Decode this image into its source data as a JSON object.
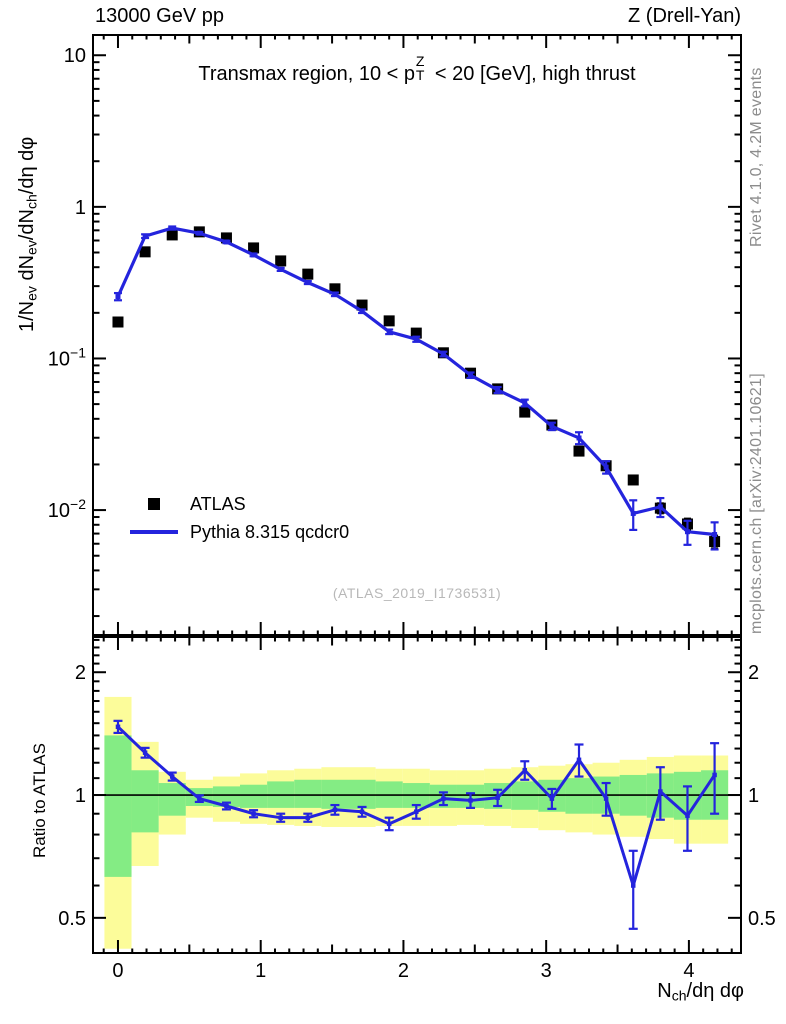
{
  "header": {
    "left_label": "13000 GeV pp",
    "right_label": "Z (Drell-Yan)"
  },
  "watermark": "(ATLAS_2019_I1736531)",
  "side_notes": {
    "top_right": "Rivet 4.1.0,  4.2M events",
    "bottom_right": "mcplots.cern.ch [arXiv:2401.10621]"
  },
  "legend": {
    "items": [
      {
        "label": "ATLAS",
        "marker": "black-square-marker"
      },
      {
        "label": "Pythia 8.315 qcdcr0",
        "marker": "blue-line-marker"
      }
    ]
  },
  "colors": {
    "mc_line": "#2424dd",
    "data_marker": "#000000",
    "band_outer": "#fcfc9a",
    "band_inner": "#84ec84",
    "frame": "#000000",
    "note_gray": "#8c8c8c",
    "watermark_gray": "#b8b8b8"
  },
  "label_parts": {
    "panel_title": [
      [
        "t",
        "Transmax region, 10 < p"
      ],
      [
        "stack",
        "Z",
        "T"
      ],
      [
        "t",
        " < 20 [GeV], high thrust"
      ]
    ],
    "y_main": [
      [
        "t",
        "1/N"
      ],
      [
        "s",
        "ev"
      ],
      [
        "t",
        " dN"
      ],
      [
        "s",
        "ev"
      ],
      [
        "t",
        "/dN"
      ],
      [
        "s",
        "ch"
      ],
      [
        "t",
        "/dη dφ"
      ]
    ],
    "x_axis": [
      [
        "t",
        "N"
      ],
      [
        "s",
        "ch"
      ],
      [
        "t",
        "/dη dφ"
      ]
    ],
    "ratio_y": [
      [
        "t",
        "Ratio to ATLAS"
      ]
    ]
  },
  "chart_data": {
    "type": "line",
    "title": "Transmax region, 10 < pT^Z < 20 [GeV], high thrust",
    "xlabel": "N_ch/dη dφ",
    "ylabel_main": "1/N_ev dN_ev/dN_ch/dη dφ",
    "ylabel_ratio": "Ratio to ATLAS",
    "legend_position": "inside-left-bottom",
    "grid": false,
    "xlim": [
      -0.175,
      4.365
    ],
    "ylim_main": [
      0.0015,
      13.6
    ],
    "ylim_ratio": [
      0.41,
      2.44
    ],
    "x_ticks": [
      {
        "v": 0,
        "label": "0"
      },
      {
        "v": 1,
        "label": "1"
      },
      {
        "v": 2,
        "label": "2"
      },
      {
        "v": 3,
        "label": "3"
      },
      {
        "v": 4,
        "label": "4"
      }
    ],
    "y_ticks_main": [
      {
        "v": 10,
        "label": "10",
        "exp": ""
      },
      {
        "v": 1,
        "label": "1",
        "exp": ""
      },
      {
        "v": 0.1,
        "label": "10",
        "exp": "−1"
      },
      {
        "v": 0.01,
        "label": "10",
        "exp": "−2"
      }
    ],
    "y_ticks_ratio": [
      {
        "v": 2,
        "label": "2"
      },
      {
        "v": 1,
        "label": "1"
      },
      {
        "v": 0.5,
        "label": "0.5"
      }
    ],
    "bin_half_width": 0.095,
    "x": [
      0,
      0.19,
      0.38,
      0.57,
      0.76,
      0.95,
      1.14,
      1.33,
      1.52,
      1.71,
      1.9,
      2.09,
      2.28,
      2.47,
      2.66,
      2.85,
      3.04,
      3.23,
      3.42,
      3.61,
      3.8,
      3.99,
      4.18
    ],
    "series": [
      {
        "name": "ATLAS",
        "style": "scatter-square",
        "color": "#000000",
        "values": [
          0.174,
          0.505,
          0.653,
          0.684,
          0.624,
          0.536,
          0.44,
          0.36,
          0.288,
          0.225,
          0.177,
          0.147,
          0.109,
          0.08,
          0.063,
          0.0443,
          0.0364,
          0.0245,
          0.0196,
          0.0158,
          0.0103,
          0.0081,
          0.0062
        ],
        "yerr": [
          0.004,
          0.008,
          0.008,
          0.007,
          0.006,
          0.005,
          0.004,
          0.004,
          0.004,
          0.003,
          0.003,
          0.003,
          0.0025,
          0.002,
          0.002,
          0.0016,
          0.0015,
          0.0012,
          0.0011,
          0.0009,
          0.0008,
          0.0007,
          0.0006
        ]
      },
      {
        "name": "Pythia 8.315 qcdcr0",
        "style": "line-with-markers",
        "color": "#2424dd",
        "values": [
          0.256,
          0.641,
          0.725,
          0.67,
          0.587,
          0.482,
          0.387,
          0.317,
          0.265,
          0.205,
          0.15,
          0.134,
          0.107,
          0.0776,
          0.062,
          0.0509,
          0.0357,
          0.0299,
          0.0192,
          0.0095,
          0.0105,
          0.0072,
          0.0069
        ],
        "yerr": [
          0.014,
          0.018,
          0.017,
          0.012,
          0.011,
          0.0096,
          0.0089,
          0.0073,
          0.0071,
          0.0055,
          0.0052,
          0.0052,
          0.0038,
          0.0032,
          0.0028,
          0.0026,
          0.002,
          0.0027,
          0.0018,
          0.0021,
          0.0015,
          0.0013,
          0.0014
        ]
      }
    ],
    "ratio": {
      "reference": "ATLAS",
      "values": [
        1.47,
        1.27,
        1.11,
        0.98,
        0.94,
        0.9,
        0.88,
        0.88,
        0.92,
        0.91,
        0.85,
        0.91,
        0.98,
        0.97,
        0.985,
        1.15,
        0.98,
        1.22,
        0.98,
        0.6,
        1.02,
        0.89,
        1.12
      ],
      "yerr": [
        0.05,
        0.035,
        0.025,
        0.018,
        0.018,
        0.018,
        0.02,
        0.02,
        0.025,
        0.025,
        0.03,
        0.035,
        0.035,
        0.04,
        0.045,
        0.06,
        0.055,
        0.11,
        0.09,
        0.13,
        0.15,
        0.16,
        0.22
      ],
      "band_outer": [
        [
          0.42,
          1.74
        ],
        [
          0.67,
          1.35
        ],
        [
          0.8,
          1.14
        ],
        [
          0.88,
          1.09
        ],
        [
          0.86,
          1.11
        ],
        [
          0.85,
          1.13
        ],
        [
          0.845,
          1.15
        ],
        [
          0.84,
          1.16
        ],
        [
          0.835,
          1.17
        ],
        [
          0.835,
          1.17
        ],
        [
          0.84,
          1.16
        ],
        [
          0.84,
          1.16
        ],
        [
          0.84,
          1.15
        ],
        [
          0.845,
          1.15
        ],
        [
          0.84,
          1.16
        ],
        [
          0.83,
          1.17
        ],
        [
          0.82,
          1.18
        ],
        [
          0.81,
          1.19
        ],
        [
          0.8,
          1.2
        ],
        [
          0.79,
          1.22
        ],
        [
          0.78,
          1.24
        ],
        [
          0.76,
          1.25
        ],
        [
          0.76,
          1.25
        ]
      ],
      "band_inner": [
        [
          0.63,
          1.4
        ],
        [
          0.81,
          1.15
        ],
        [
          0.89,
          1.07
        ],
        [
          0.94,
          1.04
        ],
        [
          0.935,
          1.05
        ],
        [
          0.93,
          1.06
        ],
        [
          0.93,
          1.08
        ],
        [
          0.93,
          1.09
        ],
        [
          0.925,
          1.09
        ],
        [
          0.925,
          1.09
        ],
        [
          0.93,
          1.08
        ],
        [
          0.93,
          1.07
        ],
        [
          0.93,
          1.06
        ],
        [
          0.93,
          1.06
        ],
        [
          0.925,
          1.07
        ],
        [
          0.92,
          1.08
        ],
        [
          0.91,
          1.09
        ],
        [
          0.9,
          1.1
        ],
        [
          0.9,
          1.11
        ],
        [
          0.89,
          1.12
        ],
        [
          0.88,
          1.13
        ],
        [
          0.87,
          1.14
        ],
        [
          0.87,
          1.15
        ]
      ]
    }
  }
}
